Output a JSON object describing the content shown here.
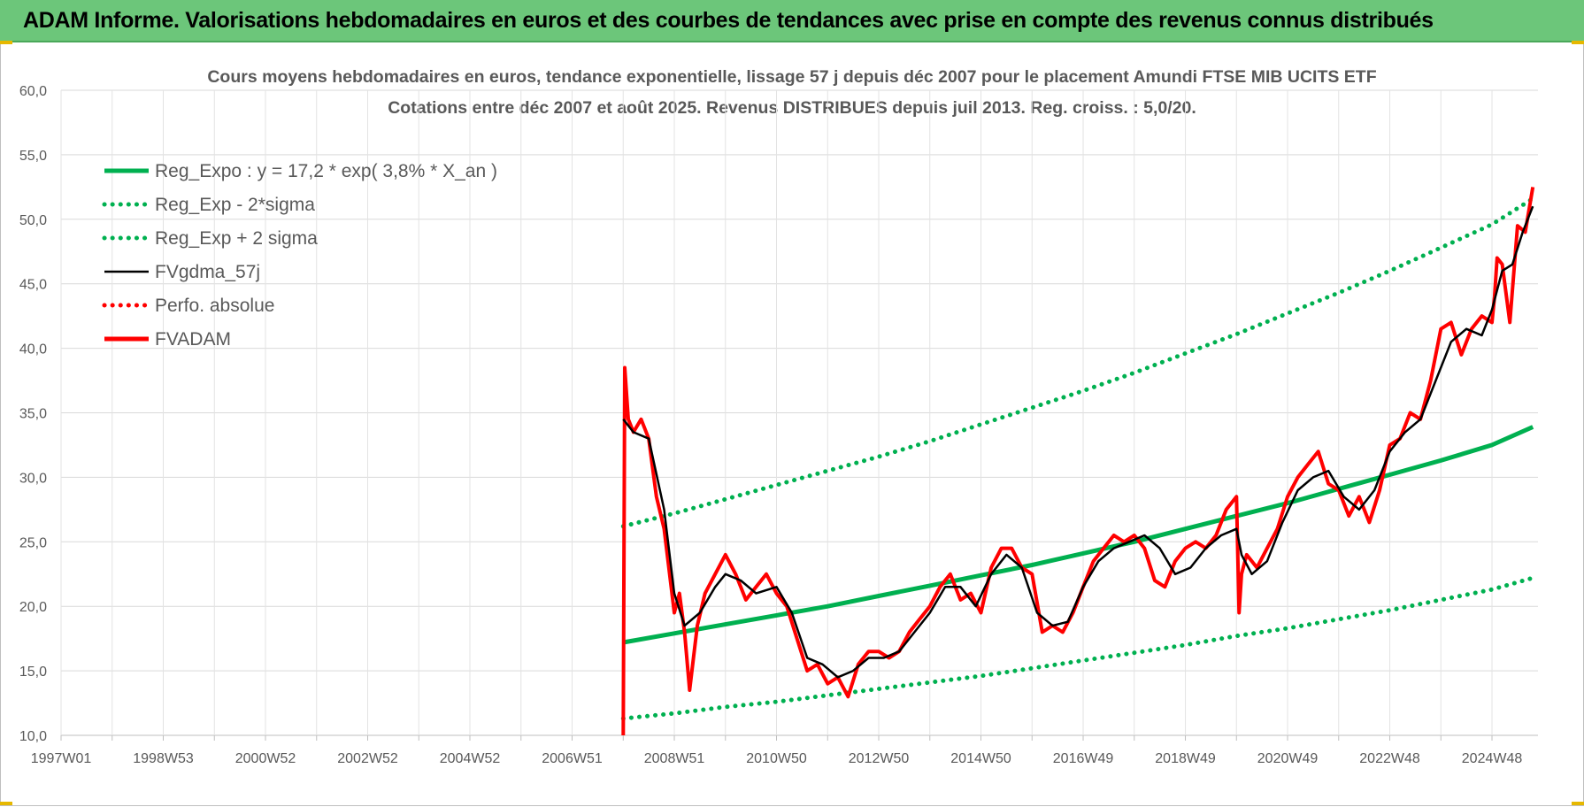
{
  "banner": {
    "title": "ADAM Informe. Valorisations hebdomadaires en euros et des courbes de tendances avec prise en compte des revenus connus distribués"
  },
  "chart_data": {
    "type": "line",
    "title": "Cours moyens hebdomadaires en euros, tendance exponentielle, lissage 57 j depuis déc 2007 pour le placement Amundi FTSE MIB UCITS ETF",
    "subtitle": "Cotations entre déc 2007 et août 2025. Revenus DISTRIBUES depuis juil 2013. Reg. croiss. : 5,0/20.",
    "xlabel": "",
    "ylabel": "",
    "ylim": [
      10,
      60
    ],
    "y_ticks": [
      "10,0",
      "15,0",
      "20,0",
      "25,0",
      "30,0",
      "35,0",
      "40,0",
      "45,0",
      "50,0",
      "55,0",
      "60,0"
    ],
    "x_range_years": [
      1997.0,
      2025.9
    ],
    "x_ticks": [
      {
        "label": "1997W01",
        "year": 1997.0
      },
      {
        "label": "1998W53",
        "year": 1999.0
      },
      {
        "label": "2000W52",
        "year": 2001.0
      },
      {
        "label": "2002W52",
        "year": 2003.0
      },
      {
        "label": "2004W52",
        "year": 2005.0
      },
      {
        "label": "2006W51",
        "year": 2007.0
      },
      {
        "label": "2008W51",
        "year": 2009.0
      },
      {
        "label": "2010W50",
        "year": 2011.0
      },
      {
        "label": "2012W50",
        "year": 2013.0
      },
      {
        "label": "2014W50",
        "year": 2015.0
      },
      {
        "label": "2016W49",
        "year": 2017.0
      },
      {
        "label": "2018W49",
        "year": 2019.0
      },
      {
        "label": "2020W49",
        "year": 2021.0
      },
      {
        "label": "2022W48",
        "year": 2023.0
      },
      {
        "label": "2024W48",
        "year": 2025.0
      }
    ],
    "grid": true,
    "legend_position": "top-left",
    "colors": {
      "trend": "#00b050",
      "smooth": "#000000",
      "perf": "#ff0000",
      "adam": "#ff0000"
    },
    "series": [
      {
        "name": "Reg_Expo : y = 17,2 * exp( 3,8% *  X_an )",
        "style": "thick-solid",
        "color": "#00b050",
        "x": [
          2008.0,
          2009.0,
          2010.0,
          2011.0,
          2012.0,
          2013.0,
          2014.0,
          2015.0,
          2016.0,
          2017.0,
          2018.0,
          2019.0,
          2020.0,
          2021.0,
          2022.0,
          2023.0,
          2024.0,
          2025.0,
          2025.8
        ],
        "values": [
          17.2,
          17.9,
          18.6,
          19.3,
          20.0,
          20.8,
          21.6,
          22.4,
          23.2,
          24.1,
          25.0,
          26.0,
          27.0,
          28.0,
          29.1,
          30.2,
          31.3,
          32.5,
          33.9
        ]
      },
      {
        "name": "Reg_Exp - 2*sigma",
        "style": "dotted",
        "color": "#00b050",
        "x": [
          2008.0,
          2009.0,
          2010.0,
          2011.0,
          2012.0,
          2013.0,
          2014.0,
          2015.0,
          2016.0,
          2017.0,
          2018.0,
          2019.0,
          2020.0,
          2021.0,
          2022.0,
          2023.0,
          2024.0,
          2025.0,
          2025.8
        ],
        "values": [
          11.3,
          11.7,
          12.2,
          12.6,
          13.1,
          13.6,
          14.1,
          14.6,
          15.2,
          15.8,
          16.4,
          17.0,
          17.7,
          18.3,
          19.0,
          19.7,
          20.5,
          21.3,
          22.2
        ]
      },
      {
        "name": "Reg_Exp + 2 sigma",
        "style": "dotted",
        "color": "#00b050",
        "x": [
          2008.0,
          2009.0,
          2010.0,
          2011.0,
          2012.0,
          2013.0,
          2014.0,
          2015.0,
          2016.0,
          2017.0,
          2018.0,
          2019.0,
          2020.0,
          2021.0,
          2022.0,
          2023.0,
          2024.0,
          2025.0,
          2025.8
        ],
        "values": [
          26.2,
          27.2,
          28.3,
          29.4,
          30.5,
          31.6,
          32.8,
          34.1,
          35.4,
          36.7,
          38.1,
          39.6,
          41.1,
          42.7,
          44.3,
          46.0,
          47.8,
          49.6,
          51.6
        ]
      },
      {
        "name": "FVgdma_57j",
        "style": "solid",
        "color": "#000000",
        "x": [
          2008.0,
          2008.2,
          2008.5,
          2008.8,
          2009.0,
          2009.2,
          2009.5,
          2009.8,
          2010.0,
          2010.3,
          2010.6,
          2011.0,
          2011.3,
          2011.6,
          2011.9,
          2012.2,
          2012.5,
          2012.8,
          2013.1,
          2013.4,
          2013.7,
          2014.0,
          2014.3,
          2014.6,
          2014.9,
          2015.2,
          2015.5,
          2015.8,
          2016.1,
          2016.4,
          2016.7,
          2017.0,
          2017.3,
          2017.6,
          2017.9,
          2018.2,
          2018.5,
          2018.8,
          2019.1,
          2019.4,
          2019.7,
          2020.0,
          2020.1,
          2020.3,
          2020.6,
          2020.9,
          2021.2,
          2021.5,
          2021.8,
          2022.1,
          2022.4,
          2022.7,
          2023.0,
          2023.3,
          2023.6,
          2023.9,
          2024.2,
          2024.5,
          2024.8,
          2025.0,
          2025.2,
          2025.4,
          2025.6,
          2025.8
        ],
        "values": [
          34.5,
          33.5,
          33.0,
          27.5,
          21.0,
          18.5,
          19.5,
          21.5,
          22.5,
          22.0,
          21.0,
          21.5,
          19.5,
          16.0,
          15.5,
          14.5,
          15.0,
          16.0,
          16.0,
          16.5,
          18.0,
          19.5,
          21.5,
          21.5,
          20.0,
          22.5,
          24.0,
          23.0,
          19.5,
          18.5,
          18.8,
          21.5,
          23.5,
          24.5,
          25.0,
          25.5,
          24.5,
          22.5,
          23.0,
          24.5,
          25.5,
          26.0,
          24.0,
          22.5,
          23.5,
          26.5,
          29.0,
          30.0,
          30.5,
          28.5,
          27.5,
          29.0,
          32.0,
          33.5,
          34.5,
          37.5,
          40.5,
          41.5,
          41.0,
          43.0,
          46.0,
          46.5,
          49.0,
          51.0
        ]
      },
      {
        "name": "Perfo. absolue",
        "style": "dotted",
        "color": "#ff0000",
        "x": [],
        "values": []
      },
      {
        "name": "FVADAM",
        "style": "thick-solid",
        "color": "#ff0000",
        "x": [
          2008.0,
          2008.03,
          2008.1,
          2008.2,
          2008.35,
          2008.5,
          2008.65,
          2008.8,
          2009.0,
          2009.1,
          2009.2,
          2009.3,
          2009.45,
          2009.6,
          2009.8,
          2010.0,
          2010.2,
          2010.4,
          2010.6,
          2010.8,
          2011.0,
          2011.2,
          2011.4,
          2011.6,
          2011.8,
          2012.0,
          2012.2,
          2012.4,
          2012.6,
          2012.8,
          2013.0,
          2013.2,
          2013.4,
          2013.6,
          2013.8,
          2014.0,
          2014.2,
          2014.4,
          2014.6,
          2014.8,
          2015.0,
          2015.2,
          2015.4,
          2015.6,
          2015.8,
          2016.0,
          2016.2,
          2016.4,
          2016.6,
          2016.8,
          2017.0,
          2017.2,
          2017.4,
          2017.6,
          2017.8,
          2018.0,
          2018.2,
          2018.4,
          2018.6,
          2018.8,
          2019.0,
          2019.2,
          2019.4,
          2019.6,
          2019.8,
          2020.0,
          2020.05,
          2020.1,
          2020.2,
          2020.4,
          2020.6,
          2020.8,
          2021.0,
          2021.2,
          2021.4,
          2021.6,
          2021.8,
          2022.0,
          2022.2,
          2022.4,
          2022.6,
          2022.8,
          2023.0,
          2023.2,
          2023.4,
          2023.6,
          2023.8,
          2024.0,
          2024.2,
          2024.4,
          2024.6,
          2024.8,
          2025.0,
          2025.05,
          2025.1,
          2025.2,
          2025.35,
          2025.5,
          2025.65,
          2025.8
        ],
        "values": [
          10.0,
          38.5,
          34.5,
          33.5,
          34.5,
          33.0,
          28.5,
          26.0,
          19.5,
          21.0,
          18.0,
          13.5,
          18.5,
          21.0,
          22.5,
          24.0,
          22.5,
          20.5,
          21.5,
          22.5,
          21.0,
          20.0,
          17.5,
          15.0,
          15.5,
          14.0,
          14.5,
          13.0,
          15.5,
          16.5,
          16.5,
          16.0,
          16.5,
          18.0,
          19.0,
          20.0,
          21.5,
          22.5,
          20.5,
          21.0,
          19.5,
          23.0,
          24.5,
          24.5,
          23.0,
          22.5,
          18.0,
          18.5,
          18.0,
          19.5,
          21.5,
          23.5,
          24.5,
          25.5,
          25.0,
          25.5,
          24.5,
          22.0,
          21.5,
          23.5,
          24.5,
          25.0,
          24.5,
          25.5,
          27.5,
          28.5,
          19.5,
          22.5,
          24.0,
          23.0,
          24.5,
          26.0,
          28.5,
          30.0,
          31.0,
          32.0,
          29.5,
          29.0,
          27.0,
          28.5,
          26.5,
          29.0,
          32.5,
          33.0,
          35.0,
          34.5,
          37.5,
          41.5,
          42.0,
          39.5,
          41.5,
          42.5,
          42.0,
          44.0,
          47.0,
          46.5,
          42.0,
          49.5,
          49.0,
          52.5
        ]
      }
    ]
  }
}
